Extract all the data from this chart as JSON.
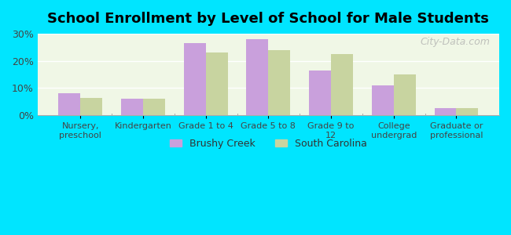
{
  "title": "School Enrollment by Level of School for Male Students",
  "categories": [
    "Nursery,\npreschool",
    "Kindergarten",
    "Grade 1 to 4",
    "Grade 5 to 8",
    "Grade 9 to\n12",
    "College\nundergrad",
    "Graduate or\nprofessional"
  ],
  "brushy_creek": [
    8.0,
    6.0,
    26.5,
    28.0,
    16.5,
    11.0,
    2.5
  ],
  "south_carolina": [
    6.5,
    6.0,
    23.0,
    24.0,
    22.5,
    15.0,
    2.5
  ],
  "brushy_color": "#c9a0dc",
  "sc_color": "#c8d4a0",
  "background_color": "#00e5ff",
  "plot_bg_color": "#f0f7e6",
  "ylim": [
    0,
    30
  ],
  "yticks": [
    0,
    10,
    20,
    30
  ],
  "ytick_labels": [
    "0%",
    "10%",
    "20%",
    "30%"
  ],
  "watermark": "City-Data.com",
  "legend_brushy": "Brushy Creek",
  "legend_sc": "South Carolina"
}
